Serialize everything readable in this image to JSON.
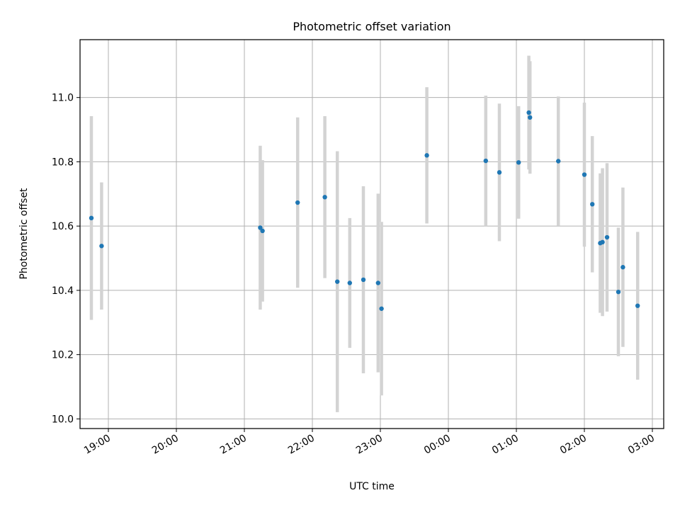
{
  "chart_data": {
    "type": "scatter",
    "title": "Photometric offset variation",
    "xlabel": "UTC time",
    "ylabel": "Photometric offset",
    "x_tick_labels": [
      "19:00",
      "20:00",
      "21:00",
      "22:00",
      "23:00",
      "00:00",
      "01:00",
      "02:00",
      "03:00"
    ],
    "y_ticks": [
      10.0,
      10.2,
      10.4,
      10.6,
      10.8,
      11.0
    ],
    "y_tick_labels": [
      "10.0",
      "10.2",
      "10.4",
      "10.6",
      "10.8",
      "11.0"
    ],
    "xlim": [
      "18:35",
      "03:10"
    ],
    "ylim": [
      9.97,
      11.18
    ],
    "grid": true,
    "legend": false,
    "colors": {
      "point": "#1f77b4",
      "errorbar": "#d3d3d3",
      "grid": "#b0b0b0"
    },
    "points": [
      {
        "x": "18:45",
        "y": 10.625,
        "yerr": 0.317
      },
      {
        "x": "18:54",
        "y": 10.538,
        "yerr": 0.198
      },
      {
        "x": "21:14",
        "y": 10.595,
        "yerr": 0.255
      },
      {
        "x": "21:16",
        "y": 10.585,
        "yerr": 0.22
      },
      {
        "x": "21:47",
        "y": 10.673,
        "yerr": 0.265
      },
      {
        "x": "22:11",
        "y": 10.69,
        "yerr": 0.252
      },
      {
        "x": "22:22",
        "y": 10.427,
        "yerr": 0.406
      },
      {
        "x": "22:33",
        "y": 10.423,
        "yerr": 0.202
      },
      {
        "x": "22:45",
        "y": 10.433,
        "yerr": 0.291
      },
      {
        "x": "22:58",
        "y": 10.423,
        "yerr": 0.278
      },
      {
        "x": "23:01",
        "y": 10.343,
        "yerr": 0.27
      },
      {
        "x": "23:41",
        "y": 10.82,
        "yerr": 0.212
      },
      {
        "x": "00:33",
        "y": 10.803,
        "yerr": 0.203
      },
      {
        "x": "00:45",
        "y": 10.767,
        "yerr": 0.214
      },
      {
        "x": "01:02",
        "y": 10.798,
        "yerr": 0.175
      },
      {
        "x": "01:11",
        "y": 10.953,
        "yerr": 0.177
      },
      {
        "x": "01:12",
        "y": 10.938,
        "yerr": 0.175
      },
      {
        "x": "01:37",
        "y": 10.802,
        "yerr": 0.201
      },
      {
        "x": "02:00",
        "y": 10.76,
        "yerr": 0.224
      },
      {
        "x": "02:07",
        "y": 10.668,
        "yerr": 0.212
      },
      {
        "x": "02:14",
        "y": 10.547,
        "yerr": 0.217
      },
      {
        "x": "02:16",
        "y": 10.55,
        "yerr": 0.23
      },
      {
        "x": "02:20",
        "y": 10.565,
        "yerr": 0.231
      },
      {
        "x": "02:30",
        "y": 10.395,
        "yerr": 0.2
      },
      {
        "x": "02:34",
        "y": 10.472,
        "yerr": 0.248
      },
      {
        "x": "02:47",
        "y": 10.352,
        "yerr": 0.23
      }
    ]
  }
}
